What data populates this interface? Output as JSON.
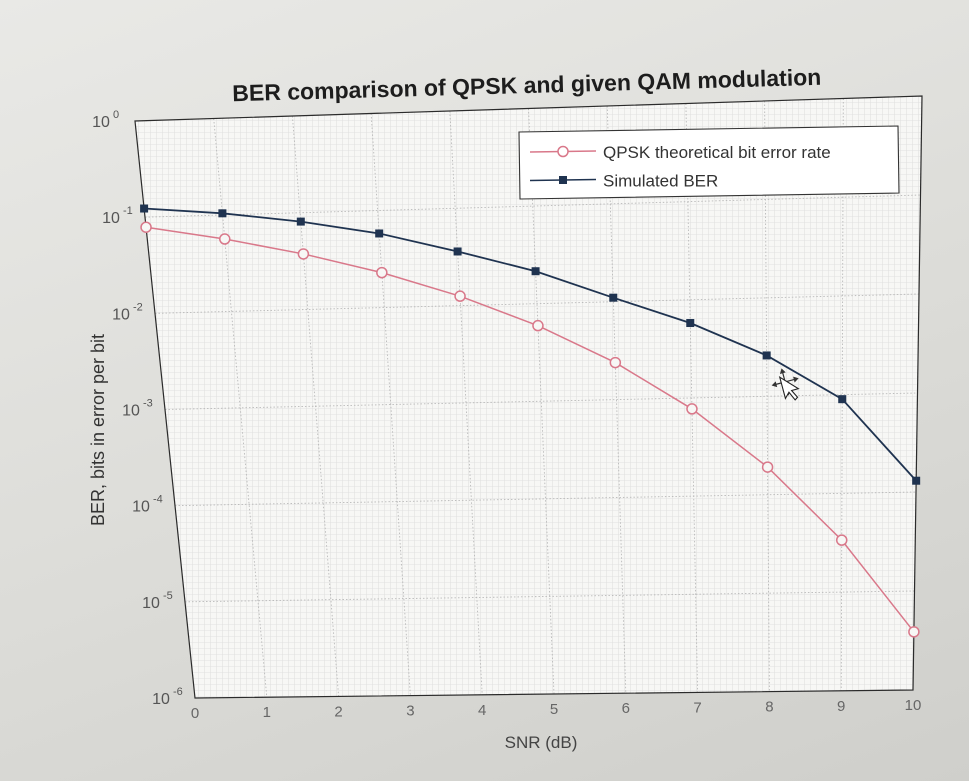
{
  "chart_data": {
    "type": "line",
    "title": "BER comparison of QPSK and given QAM modulation",
    "xlabel": "SNR (dB)",
    "ylabel": "BER, bits in error per bit",
    "x_ticks": [
      "0",
      "1",
      "2",
      "3",
      "4",
      "5",
      "6",
      "7",
      "8",
      "9",
      "10"
    ],
    "y_ticks": [
      {
        "base": "10",
        "exp": "0"
      },
      {
        "base": "10",
        "exp": "-1"
      },
      {
        "base": "10",
        "exp": "-2"
      },
      {
        "base": "10",
        "exp": "-3"
      },
      {
        "base": "10",
        "exp": "-4"
      },
      {
        "base": "10",
        "exp": "-5"
      },
      {
        "base": "10",
        "exp": "-6"
      }
    ],
    "xlim": [
      0,
      10
    ],
    "ylim": [
      1e-06,
      1
    ],
    "yscale": "log",
    "grid": true,
    "legend_position": "top-right",
    "series": [
      {
        "name": "QPSK theoretical bit error rate",
        "color": "#d9788a",
        "marker": "circle",
        "x": [
          0,
          1,
          2,
          3,
          4,
          5,
          6,
          7,
          8,
          9,
          10
        ],
        "y": [
          0.0786,
          0.0563,
          0.0375,
          0.0229,
          0.0125,
          0.00595,
          0.00239,
          0.000773,
          0.000191,
          3.36e-05,
          3.87e-06
        ]
      },
      {
        "name": "Simulated BER",
        "color": "#1f3350",
        "marker": "square",
        "x": [
          0,
          1,
          2,
          3,
          4,
          5,
          6,
          7,
          8,
          9,
          10
        ],
        "y": [
          0.123,
          0.104,
          0.081,
          0.058,
          0.036,
          0.0215,
          0.011,
          0.0058,
          0.0026,
          0.0009,
          0.00013
        ]
      }
    ]
  }
}
